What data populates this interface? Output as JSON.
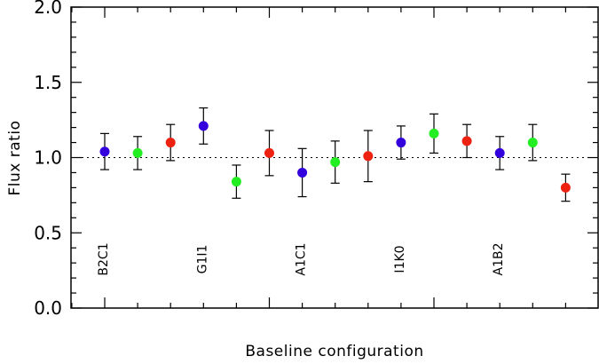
{
  "chart_data": {
    "type": "scatter",
    "title": "",
    "xlabel": "Baseline configuration",
    "ylabel": "Flux ratio",
    "ylim": [
      0.0,
      2.0
    ],
    "yticks": [
      "0.0",
      "0.5",
      "1.0",
      "1.5",
      "2.0"
    ],
    "xlim": [
      0,
      15
    ],
    "reference_line": {
      "y": 1.0,
      "style": "dotted"
    },
    "grid": false,
    "legend": "none",
    "group_labels": [
      {
        "text": "B2C1",
        "x": 1
      },
      {
        "text": "G1I1",
        "x": 4
      },
      {
        "text": "A1C1",
        "x": 7
      },
      {
        "text": "I1K0",
        "x": 10
      },
      {
        "text": "A1B2",
        "x": 13
      }
    ],
    "colors": {
      "blue": "#3300dd",
      "green": "#22ee22",
      "red": "#ee2211"
    },
    "points": [
      {
        "x": 1,
        "y": 1.04,
        "err": 0.12,
        "color": "blue"
      },
      {
        "x": 2,
        "y": 1.03,
        "err": 0.11,
        "color": "green"
      },
      {
        "x": 3,
        "y": 1.1,
        "err": 0.12,
        "color": "red"
      },
      {
        "x": 4,
        "y": 1.21,
        "err": 0.12,
        "color": "blue"
      },
      {
        "x": 5,
        "y": 0.84,
        "err": 0.11,
        "color": "green"
      },
      {
        "x": 6,
        "y": 1.03,
        "err": 0.15,
        "color": "red"
      },
      {
        "x": 7,
        "y": 0.9,
        "err": 0.16,
        "color": "blue"
      },
      {
        "x": 8,
        "y": 0.97,
        "err": 0.14,
        "color": "green"
      },
      {
        "x": 9,
        "y": 1.01,
        "err": 0.17,
        "color": "red"
      },
      {
        "x": 10,
        "y": 1.1,
        "err": 0.11,
        "color": "blue"
      },
      {
        "x": 11,
        "y": 1.16,
        "err": 0.13,
        "color": "green"
      },
      {
        "x": 12,
        "y": 1.11,
        "err": 0.11,
        "color": "red"
      },
      {
        "x": 13,
        "y": 1.03,
        "err": 0.11,
        "color": "blue"
      },
      {
        "x": 14,
        "y": 1.1,
        "err": 0.12,
        "color": "green"
      },
      {
        "x": 15,
        "y": 0.8,
        "err": 0.09,
        "color": "red"
      }
    ]
  }
}
